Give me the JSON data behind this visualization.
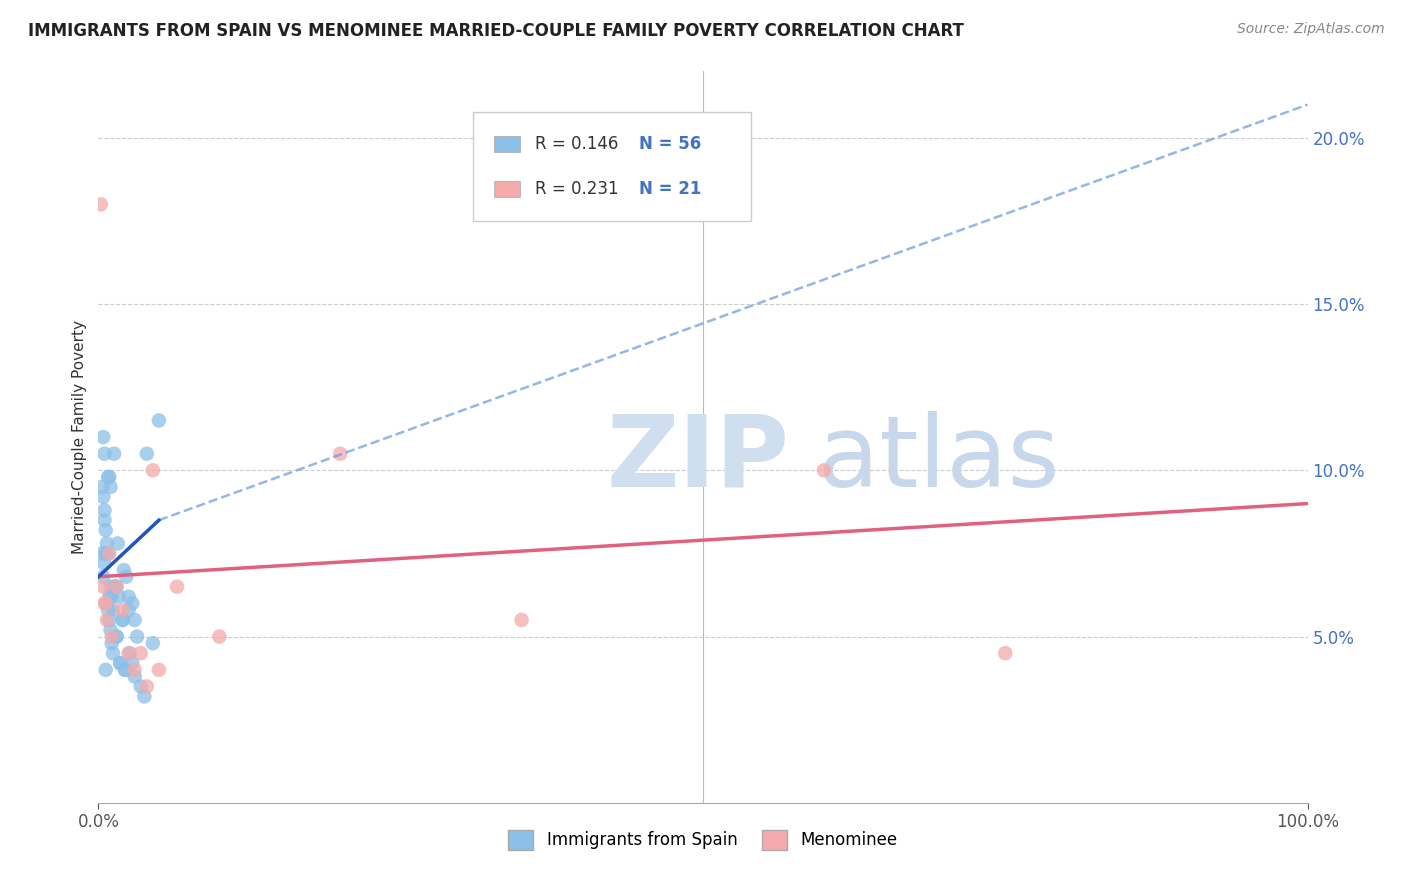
{
  "title": "IMMIGRANTS FROM SPAIN VS MENOMINEE MARRIED-COUPLE FAMILY POVERTY CORRELATION CHART",
  "source": "Source: ZipAtlas.com",
  "ylabel": "Married-Couple Family Poverty",
  "xlim": [
    0,
    100
  ],
  "ylim": [
    0,
    22
  ],
  "ytick_positions": [
    5,
    10,
    15,
    20
  ],
  "ytick_labels": [
    "5.0%",
    "10.0%",
    "15.0%",
    "20.0%"
  ],
  "legend_r1": "R = 0.146",
  "legend_n1": "N = 56",
  "legend_r2": "R = 0.231",
  "legend_n2": "N = 21",
  "blue_color": "#8BBFE8",
  "pink_color": "#F4AAAA",
  "trend_blue_solid_color": "#2255BB",
  "trend_blue_dash_color": "#6699DD",
  "trend_pink_color": "#E06080",
  "blue_x": [
    0.3,
    0.4,
    0.5,
    0.5,
    0.6,
    0.7,
    0.8,
    0.9,
    1.0,
    1.0,
    1.1,
    1.2,
    1.3,
    1.4,
    1.5,
    1.6,
    1.7,
    1.8,
    2.0,
    2.1,
    2.2,
    2.3,
    2.5,
    2.6,
    2.8,
    3.0,
    3.2,
    3.5,
    3.8,
    4.0,
    4.5,
    5.0,
    0.3,
    0.4,
    0.4,
    0.5,
    0.6,
    0.7,
    0.8,
    0.9,
    1.0,
    1.1,
    1.2,
    1.3,
    1.5,
    1.8,
    2.0,
    2.2,
    2.5,
    3.0,
    0.5,
    0.8,
    0.6,
    0.9,
    1.5,
    2.8
  ],
  "blue_y": [
    9.5,
    9.2,
    8.8,
    8.5,
    8.2,
    7.8,
    7.5,
    9.8,
    9.5,
    6.5,
    6.2,
    5.8,
    10.5,
    6.5,
    5.0,
    7.8,
    6.2,
    4.2,
    5.5,
    7.0,
    4.0,
    6.8,
    5.8,
    4.5,
    4.2,
    3.8,
    5.0,
    3.5,
    3.2,
    10.5,
    4.8,
    11.5,
    7.5,
    6.8,
    11.0,
    7.2,
    7.5,
    6.0,
    5.8,
    5.5,
    5.2,
    4.8,
    4.5,
    6.5,
    5.0,
    4.2,
    5.5,
    4.0,
    6.2,
    5.5,
    10.5,
    9.8,
    4.0,
    6.2,
    6.5,
    6.0
  ],
  "pink_x": [
    0.2,
    0.4,
    0.5,
    0.7,
    0.9,
    1.1,
    1.5,
    2.0,
    2.5,
    3.0,
    4.0,
    5.0,
    6.5,
    10.0,
    20.0,
    35.0,
    60.0,
    75.0,
    3.5,
    4.5,
    0.6
  ],
  "pink_y": [
    18.0,
    6.5,
    6.0,
    5.5,
    7.5,
    5.0,
    6.5,
    5.8,
    4.5,
    4.0,
    3.5,
    4.0,
    6.5,
    5.0,
    10.5,
    5.5,
    10.0,
    4.5,
    4.5,
    10.0,
    6.0
  ],
  "blue_trend_x0": 0.0,
  "blue_trend_y0": 6.8,
  "blue_trend_x1": 5.0,
  "blue_trend_y1": 8.5,
  "blue_dash_x0": 5.0,
  "blue_dash_y0": 8.5,
  "blue_dash_x1": 100.0,
  "blue_dash_y1": 21.0,
  "pink_trend_x0": 0.0,
  "pink_trend_y0": 6.8,
  "pink_trend_x1": 100.0,
  "pink_trend_y1": 9.0
}
